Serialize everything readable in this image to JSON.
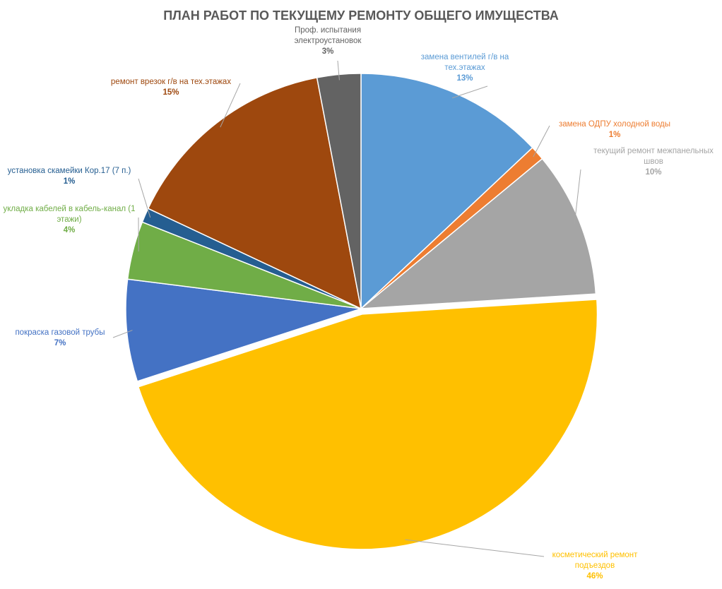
{
  "chart_data": {
    "type": "pie",
    "title": "ПЛАН РАБОТ ПО ТЕКУЩЕМУ РЕМОНТУ ОБЩЕГО ИМУЩЕСТВА",
    "categories": [
      "замена вентилей г/в на тех.этажах",
      "замена ОДПУ холодной воды",
      "текущий ремонт межпанельных швов",
      "косметический ремонт подъездов",
      "покраска газовой трубы",
      "укладка кабелей в кабель-канал (1 этажи)",
      "установка скамейки Кор.17 (7 п.)",
      "ремонт врезок г/в на тех.этажах",
      "Проф. испытания электроустановок"
    ],
    "values": [
      13,
      1,
      10,
      46,
      7,
      4,
      1,
      15,
      3
    ],
    "value_labels": [
      "13%",
      "1%",
      "10%",
      "46%",
      "7%",
      "4%",
      "1%",
      "15%",
      "3%"
    ],
    "colors": [
      "#5b9bd5",
      "#ed7d31",
      "#a5a5a5",
      "#ffc000",
      "#4472c4",
      "#70ad47",
      "#255e91",
      "#9e480e",
      "#636363"
    ]
  }
}
